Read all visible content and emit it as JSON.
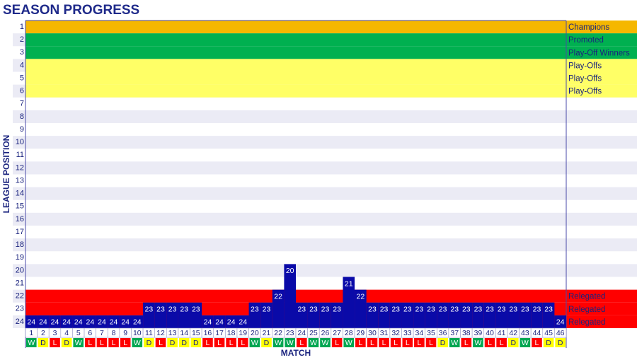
{
  "chart_data": {
    "type": "bar",
    "title": "SEASON PROGRESS",
    "x_label": "MATCH",
    "y_label": "LEAGUE POSITION",
    "categories": [
      1,
      2,
      3,
      4,
      5,
      6,
      7,
      8,
      9,
      10,
      11,
      12,
      13,
      14,
      15,
      16,
      17,
      18,
      19,
      20,
      21,
      22,
      23,
      24,
      25,
      26,
      27,
      28,
      29,
      30,
      31,
      32,
      33,
      34,
      35,
      36,
      37,
      38,
      39,
      40,
      41,
      42,
      43,
      44,
      45,
      46
    ],
    "values": [
      24,
      24,
      24,
      24,
      24,
      24,
      24,
      24,
      24,
      24,
      23,
      23,
      23,
      23,
      23,
      24,
      24,
      24,
      24,
      23,
      23,
      22,
      20,
      23,
      23,
      23,
      23,
      21,
      22,
      23,
      23,
      23,
      23,
      23,
      23,
      23,
      23,
      23,
      23,
      23,
      23,
      23,
      23,
      23,
      23,
      24
    ],
    "results": [
      "W",
      "D",
      "L",
      "D",
      "W",
      "L",
      "L",
      "L",
      "L",
      "W",
      "D",
      "L",
      "D",
      "D",
      "D",
      "L",
      "L",
      "L",
      "L",
      "W",
      "D",
      "W",
      "W",
      "L",
      "W",
      "W",
      "L",
      "W",
      "L",
      "L",
      "L",
      "L",
      "L",
      "L",
      "L",
      "D",
      "W",
      "L",
      "W",
      "L",
      "L",
      "D",
      "W",
      "L",
      "D",
      "D"
    ],
    "result_colors": {
      "W": "#00a651",
      "D": "#ffff00",
      "L": "#ff0000"
    },
    "color": "#0a0aa8",
    "ylim": [
      0.5,
      24.5
    ],
    "y_reversed": true,
    "yticks": [
      1,
      2,
      3,
      4,
      5,
      6,
      7,
      8,
      9,
      10,
      11,
      12,
      13,
      14,
      15,
      16,
      17,
      18,
      19,
      20,
      21,
      22,
      23,
      24
    ],
    "zones": [
      {
        "position": 1,
        "label": "Champions",
        "color": "#f5b700"
      },
      {
        "position": 2,
        "label": "Promoted",
        "color": "#00b050"
      },
      {
        "position": 3,
        "label": "Play-Off Winners",
        "color": "#00b050"
      },
      {
        "position": 4,
        "label": "Play-Offs",
        "color": "#ffff66"
      },
      {
        "position": 5,
        "label": "Play-Offs",
        "color": "#ffff66"
      },
      {
        "position": 6,
        "label": "Play-Offs",
        "color": "#ffff66"
      },
      {
        "position": 22,
        "label": "Relegated",
        "color": "#ff0000"
      },
      {
        "position": 23,
        "label": "Relegated",
        "color": "#ff0000"
      },
      {
        "position": 24,
        "label": "Relegated",
        "color": "#ff0000"
      }
    ]
  }
}
